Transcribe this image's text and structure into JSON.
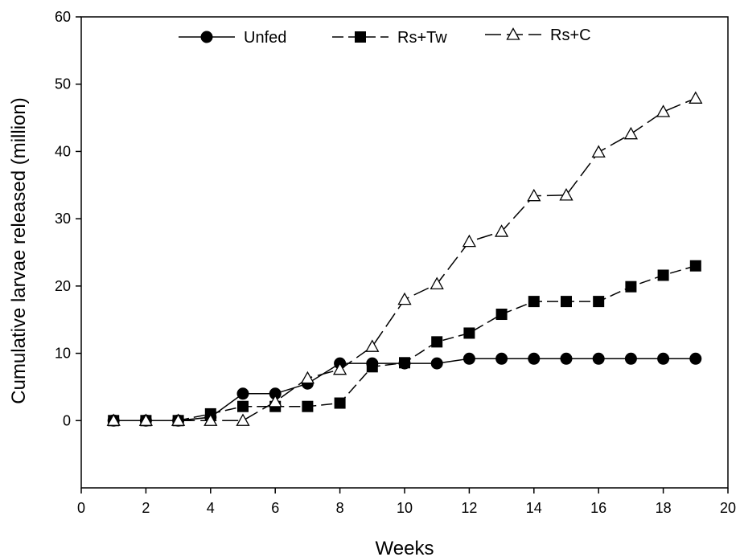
{
  "chart_data": {
    "type": "line",
    "xlabel": "Weeks",
    "ylabel": "Cumulative larvae released (million)",
    "xlim": [
      0,
      20
    ],
    "ylim": [
      -10,
      60
    ],
    "xticks": [
      0,
      2,
      4,
      6,
      8,
      10,
      12,
      14,
      16,
      18,
      20
    ],
    "yticks": [
      0,
      10,
      20,
      30,
      40,
      50,
      60
    ],
    "grid": false,
    "legend_position": "top",
    "x": [
      1,
      2,
      3,
      4,
      5,
      6,
      7,
      8,
      9,
      10,
      11,
      12,
      13,
      14,
      15,
      16,
      17,
      18,
      19
    ],
    "series": [
      {
        "name": "Unfed",
        "marker": "filled-circle",
        "line_style": "solid",
        "color": "#000000",
        "values": [
          0,
          0,
          0,
          0.5,
          4,
          4,
          5.5,
          8.5,
          8.5,
          8.5,
          8.5,
          9.2,
          9.2,
          9.2,
          9.2,
          9.2,
          9.2,
          9.2,
          9.2
        ]
      },
      {
        "name": "Rs+Tw",
        "marker": "filled-square",
        "line_style": "dashed",
        "color": "#000000",
        "values": [
          0,
          0,
          0,
          1,
          2.1,
          2.1,
          2.1,
          2.6,
          8,
          8.6,
          11.7,
          13,
          15.8,
          17.7,
          17.7,
          17.7,
          19.9,
          21.6,
          23
        ]
      },
      {
        "name": "Rs+C",
        "marker": "open-triangle",
        "line_style": "long-dash",
        "color": "#000000",
        "values": [
          0,
          0,
          0,
          0,
          0,
          2.8,
          6.3,
          7.6,
          11,
          18,
          20.3,
          26.6,
          28.1,
          33.4,
          33.5,
          39.9,
          42.6,
          45.9,
          47.9
        ]
      }
    ]
  }
}
